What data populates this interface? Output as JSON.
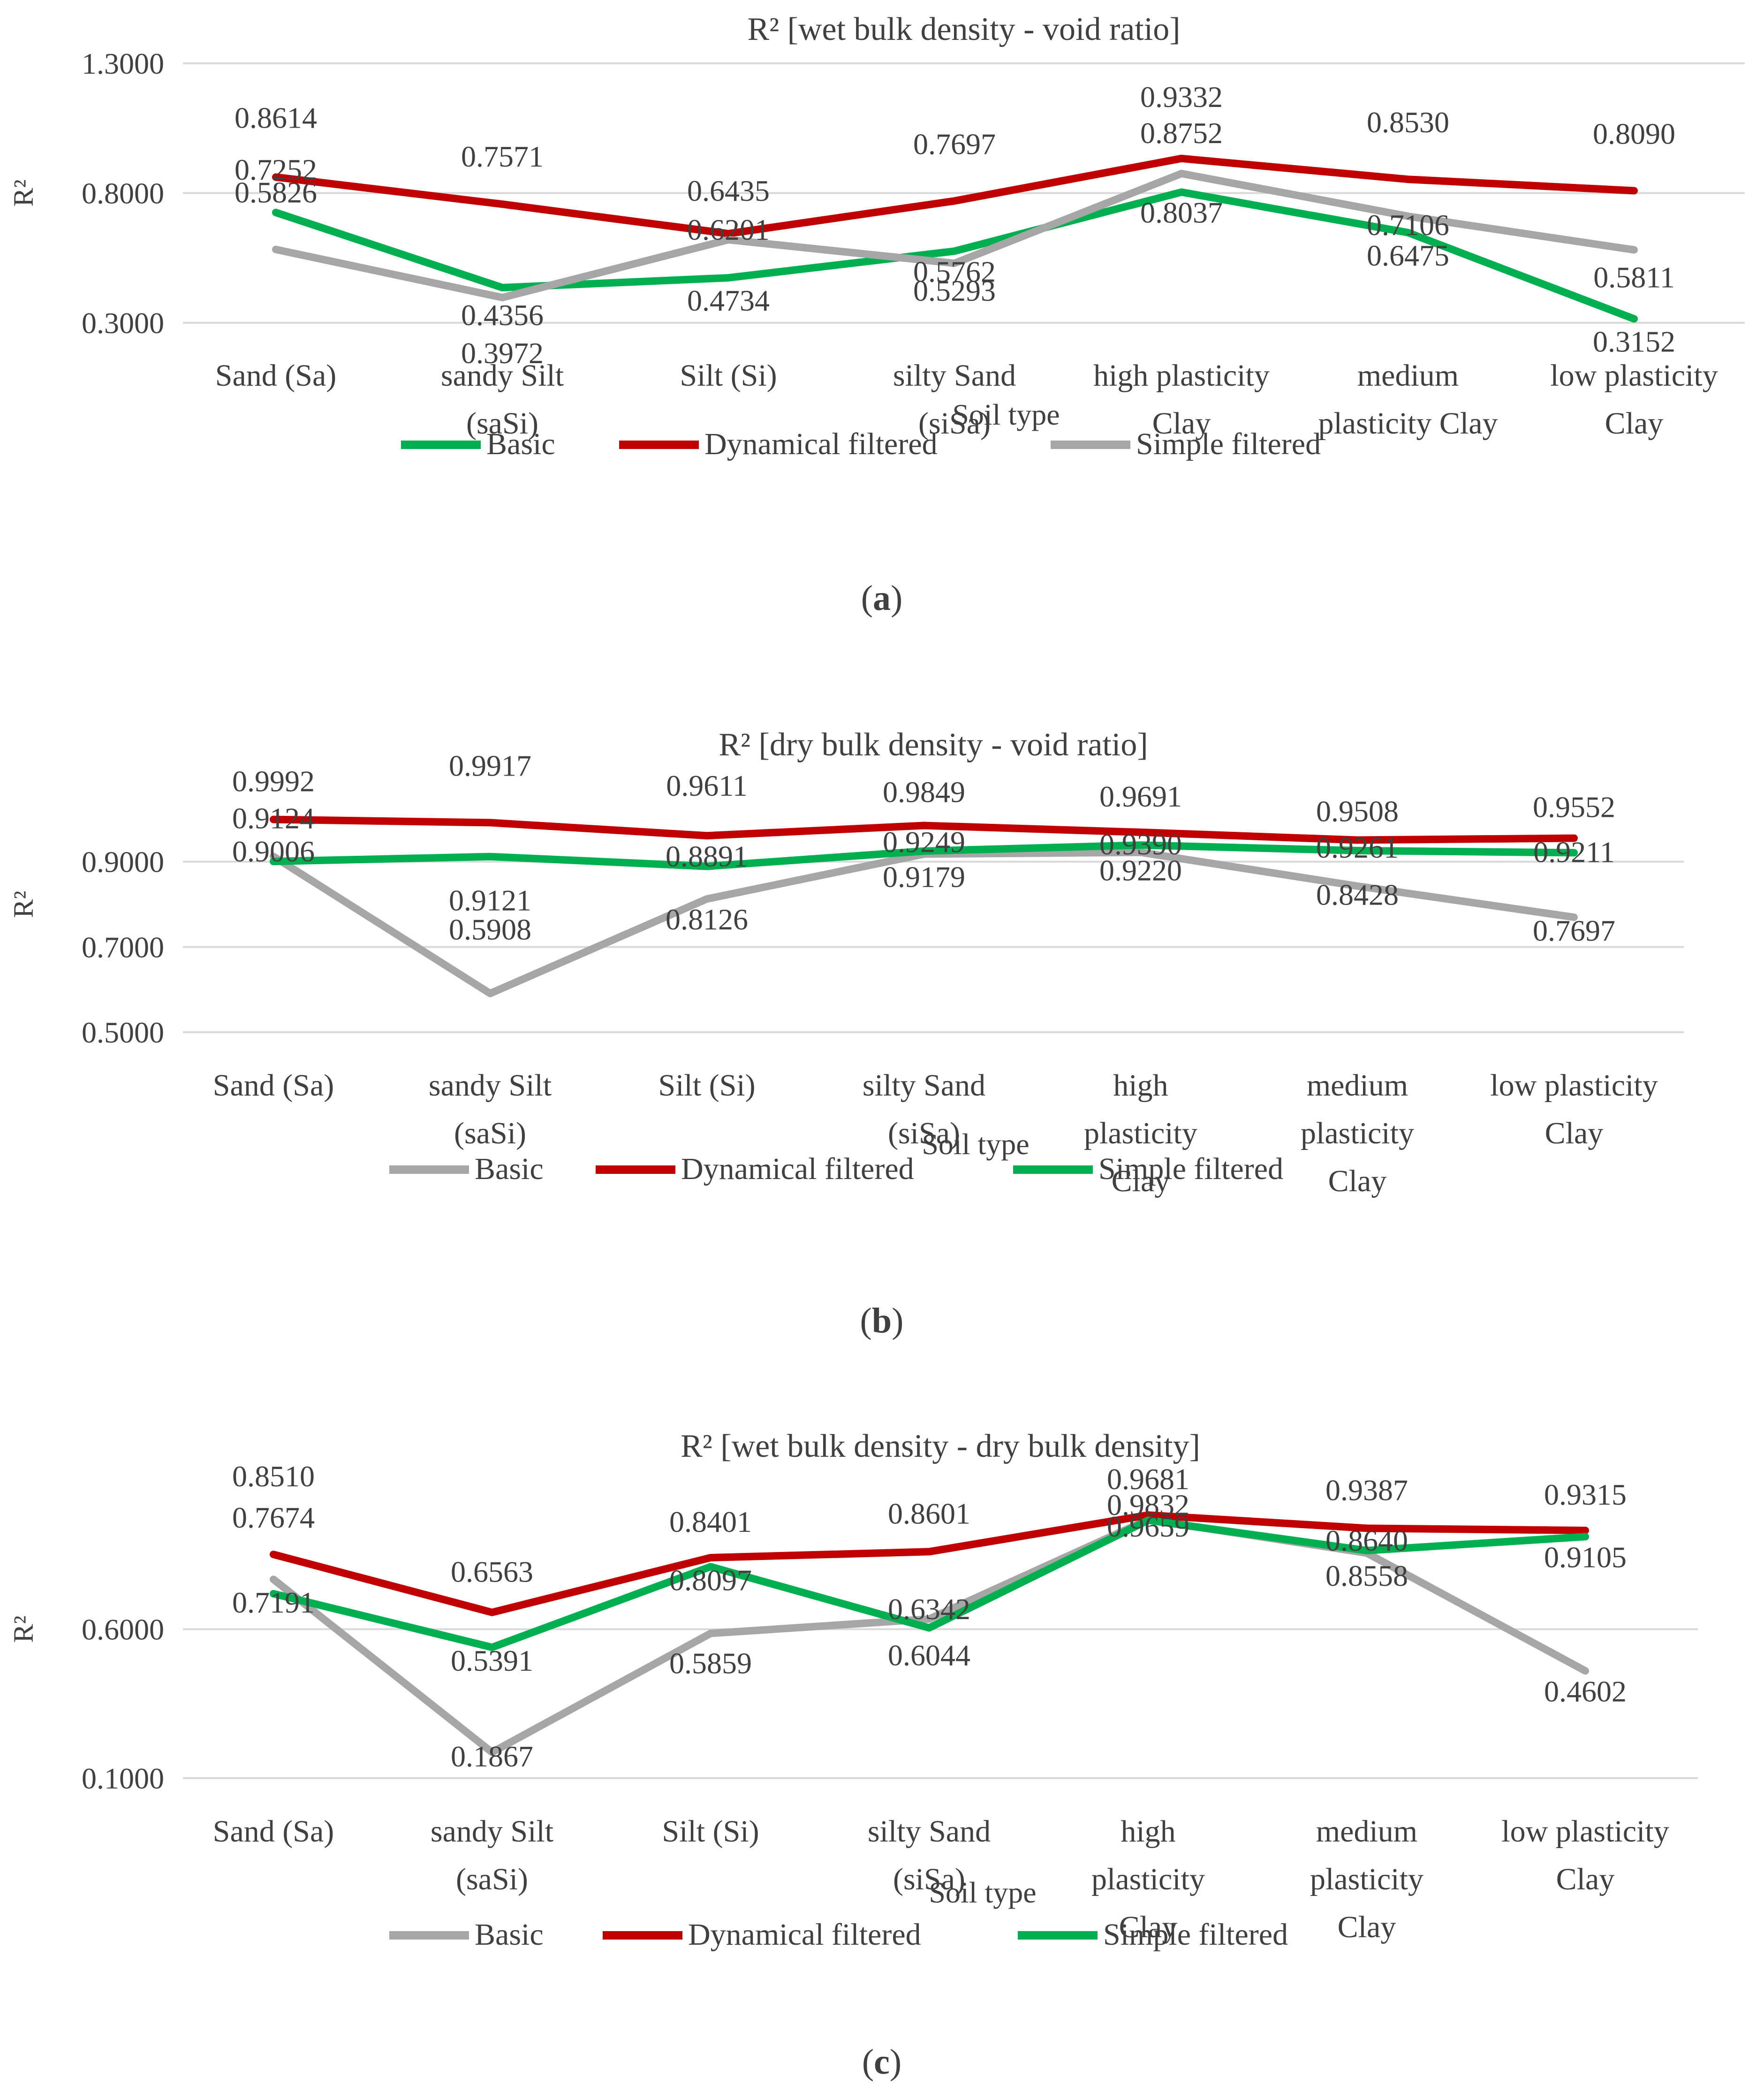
{
  "chart_data": [
    {
      "panel": "a",
      "type": "line",
      "title": "R² [wet bulk density - void ratio]",
      "xlabel": "Soil type",
      "ylabel": "R²",
      "ylim": [
        0.3,
        1.3
      ],
      "yticks": [
        "0.3000",
        "0.8000",
        "1.3000"
      ],
      "categories": [
        [
          "Sand (Sa)"
        ],
        [
          "sandy Silt",
          "(saSi)"
        ],
        [
          "Silt (Si)"
        ],
        [
          "silty Sand",
          "(siSa)"
        ],
        [
          "high plasticity",
          "Clay"
        ],
        [
          "medium",
          "plasticity Clay"
        ],
        [
          "low plasticity",
          "Clay"
        ]
      ],
      "series": [
        {
          "name": "Basic",
          "color": "#00b050",
          "values": [
            0.7252,
            0.4356,
            0.4734,
            0.5762,
            0.8037,
            0.6475,
            0.3152
          ]
        },
        {
          "name": "Dynamical filtered",
          "color": "#c00000",
          "values": [
            0.8614,
            0.7571,
            0.6435,
            0.7697,
            0.9332,
            0.853,
            0.809
          ]
        },
        {
          "name": "Simple filtered",
          "color": "#a6a6a6",
          "values": [
            0.5826,
            0.3972,
            0.6201,
            0.5293,
            0.8752,
            0.7106,
            0.5811
          ]
        }
      ],
      "legend_order": [
        "Basic",
        "Dynamical filtered",
        "Simple filtered"
      ],
      "data_labels": [
        [
          "0.7252",
          "0.4356",
          "0.4734",
          "0.5762",
          "0.8037",
          "0.6475",
          "0.3152"
        ],
        [
          "0.8614",
          "0.7571",
          "0.6435",
          "0.7697",
          "0.9332",
          "0.8530",
          "0.8090"
        ],
        [
          "0.5826",
          "0.3972",
          "0.6201",
          "0.5293",
          "0.8752",
          "0.7106",
          "0.5811"
        ]
      ],
      "caption": "(a)"
    },
    {
      "panel": "b",
      "type": "line",
      "title": "R² [dry bulk density - void ratio]",
      "xlabel": "Soil type",
      "ylabel": "R²",
      "ylim": [
        0.5,
        1.1
      ],
      "yticks": [
        "0.5000",
        "0.7000",
        "0.9000"
      ],
      "categories": [
        [
          "Sand (Sa)"
        ],
        [
          "sandy Silt",
          "(saSi)"
        ],
        [
          "Silt (Si)"
        ],
        [
          "silty Sand",
          "(siSa)"
        ],
        [
          "high",
          "plasticity",
          "Clay"
        ],
        [
          "medium",
          "plasticity",
          "Clay"
        ],
        [
          "low plasticity",
          "Clay"
        ]
      ],
      "series": [
        {
          "name": "Basic",
          "color": "#a6a6a6",
          "values": [
            0.9124,
            0.5908,
            0.8126,
            0.9179,
            0.922,
            0.8428,
            0.7697
          ]
        },
        {
          "name": "Dynamical filtered",
          "color": "#c00000",
          "values": [
            0.9992,
            0.9917,
            0.9611,
            0.9849,
            0.9691,
            0.9508,
            0.9552
          ]
        },
        {
          "name": "Simple filtered",
          "color": "#00b050",
          "values": [
            0.9006,
            0.9121,
            0.8891,
            0.9249,
            0.939,
            0.9261,
            0.9211
          ]
        }
      ],
      "legend_order": [
        "Basic",
        "Dynamical filtered",
        "Simple filtered"
      ],
      "data_labels": [
        [
          "0.9124",
          "0.5908",
          "0.8126",
          "0.9179",
          "0.9220",
          "0.8428",
          "0.7697"
        ],
        [
          "0.9992",
          "0.9917",
          "0.9611",
          "0.9849",
          "0.9691",
          "0.9508",
          "0.9552"
        ],
        [
          "0.9006",
          "0.9121",
          "0.8891",
          "0.9249",
          "0.9390",
          "0.9261",
          "0.9211"
        ]
      ],
      "caption": "(b)"
    },
    {
      "panel": "c",
      "type": "line",
      "title": "R² [wet bulk density - dry bulk density]",
      "xlabel": "Soil type",
      "ylabel": "R²",
      "ylim": [
        0.1,
        1.1
      ],
      "yticks": [
        "0.1000",
        "0.6000"
      ],
      "categories": [
        [
          "Sand (Sa)"
        ],
        [
          "sandy Silt",
          "(saSi)"
        ],
        [
          "Silt (Si)"
        ],
        [
          "silty Sand",
          "(siSa)"
        ],
        [
          "high",
          "plasticity",
          "Clay"
        ],
        [
          "medium",
          "plasticity",
          "Clay"
        ],
        [
          "low plasticity",
          "Clay"
        ]
      ],
      "series": [
        {
          "name": "Basic",
          "color": "#a6a6a6",
          "values": [
            0.7674,
            0.1867,
            0.5859,
            0.6342,
            0.9681,
            0.8558,
            0.4602
          ]
        },
        {
          "name": "Dynamical filtered",
          "color": "#c00000",
          "values": [
            0.851,
            0.6563,
            0.8401,
            0.8601,
            0.9832,
            0.9387,
            0.9315
          ]
        },
        {
          "name": "Simple filtered",
          "color": "#00b050",
          "values": [
            0.7191,
            0.5391,
            0.8097,
            0.6044,
            0.9659,
            0.864,
            0.9105
          ]
        }
      ],
      "legend_order": [
        "Basic",
        "Dynamical filtered",
        "Simple filtered"
      ],
      "data_labels": [
        [
          "0.7674",
          "0.1867",
          "0.5859",
          "0.6342",
          "0.9681",
          "0.8558",
          "0.4602"
        ],
        [
          "0.8510",
          "0.6563",
          "0.8401",
          "0.8601",
          "0.9832",
          "0.9387",
          "0.9315"
        ],
        [
          "0.7191",
          "0.5391",
          "0.8097",
          "0.6044",
          "0.9659",
          "0.8640",
          "0.9105"
        ]
      ],
      "caption": "(c)"
    }
  ],
  "colors": {
    "gridline": "#d9d9d9",
    "text": "#404040"
  }
}
